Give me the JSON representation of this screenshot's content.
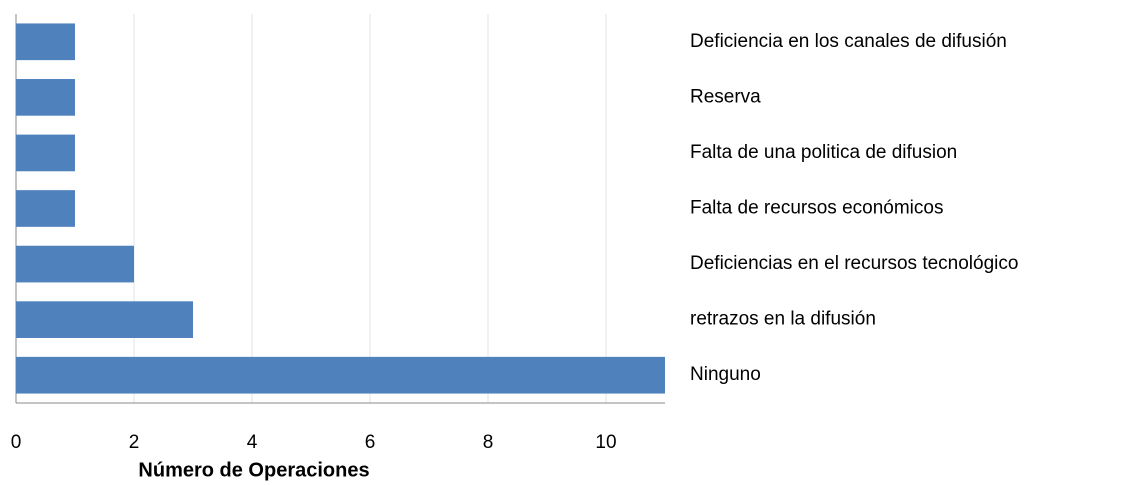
{
  "chart_data": {
    "type": "bar",
    "orientation": "horizontal",
    "categories": [
      "Deficiencia en los canales de difusión",
      "Reserva",
      "Falta de una politica de difusion",
      "Falta de recursos económicos",
      "Deficiencias en el recursos tecnológico",
      "retrazos en la difusión",
      "Ninguno"
    ],
    "values": [
      1,
      1,
      1,
      1,
      2,
      3,
      11
    ],
    "color": "#4f81bd",
    "xlabel": "Número de Operaciones",
    "xlim": [
      0,
      11
    ],
    "xticks": [
      0,
      2,
      4,
      6,
      8,
      10
    ],
    "grid": true
  }
}
